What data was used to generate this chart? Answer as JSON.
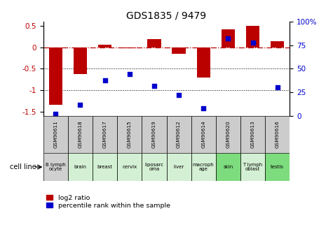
{
  "title": "GDS1835 / 9479",
  "samples": [
    "GSM90611",
    "GSM90618",
    "GSM90617",
    "GSM90615",
    "GSM90619",
    "GSM90612",
    "GSM90614",
    "GSM90620",
    "GSM90613",
    "GSM90616"
  ],
  "cell_lines": [
    "B lymph\nocyte",
    "brain",
    "breast",
    "cervix",
    "liposarc\noma",
    "liver",
    "macroph\nage",
    "skin",
    "T lymph\noblast",
    "testis"
  ],
  "cell_line_colors": [
    "#d0d0d0",
    "#d4f0d4",
    "#d4f0d4",
    "#d4f0d4",
    "#d4f0d4",
    "#d4f0d4",
    "#d4f0d4",
    "#7ddc7d",
    "#d4f0d4",
    "#7ddc7d"
  ],
  "log2_ratio": [
    -1.35,
    -0.62,
    0.07,
    -0.02,
    0.2,
    -0.15,
    -0.7,
    0.42,
    0.5,
    0.15
  ],
  "percentile_rank": [
    2,
    12,
    38,
    44,
    32,
    22,
    8,
    82,
    78,
    30
  ],
  "bar_color": "#bb0000",
  "dot_color": "#0000cc",
  "ylim_left": [
    -1.6,
    0.6
  ],
  "ylim_right": [
    0,
    100
  ],
  "yticks_left": [
    -1.5,
    -1.0,
    -0.5,
    0,
    0.5
  ],
  "ytick_labels_left": [
    "-1.5",
    "-1",
    "-0.5",
    "0",
    "0.5"
  ],
  "yticks_right": [
    0,
    25,
    50,
    75,
    100
  ],
  "ytick_labels_right": [
    "0",
    "25",
    "50",
    "75",
    "100%"
  ],
  "hline_y": 0,
  "dotted_lines": [
    -0.5,
    -1.0
  ],
  "legend_red_label": "log2 ratio",
  "legend_blue_label": "percentile rank within the sample",
  "cell_line_label": "cell line",
  "bar_width": 0.55,
  "gsm_row_color": "#cccccc"
}
